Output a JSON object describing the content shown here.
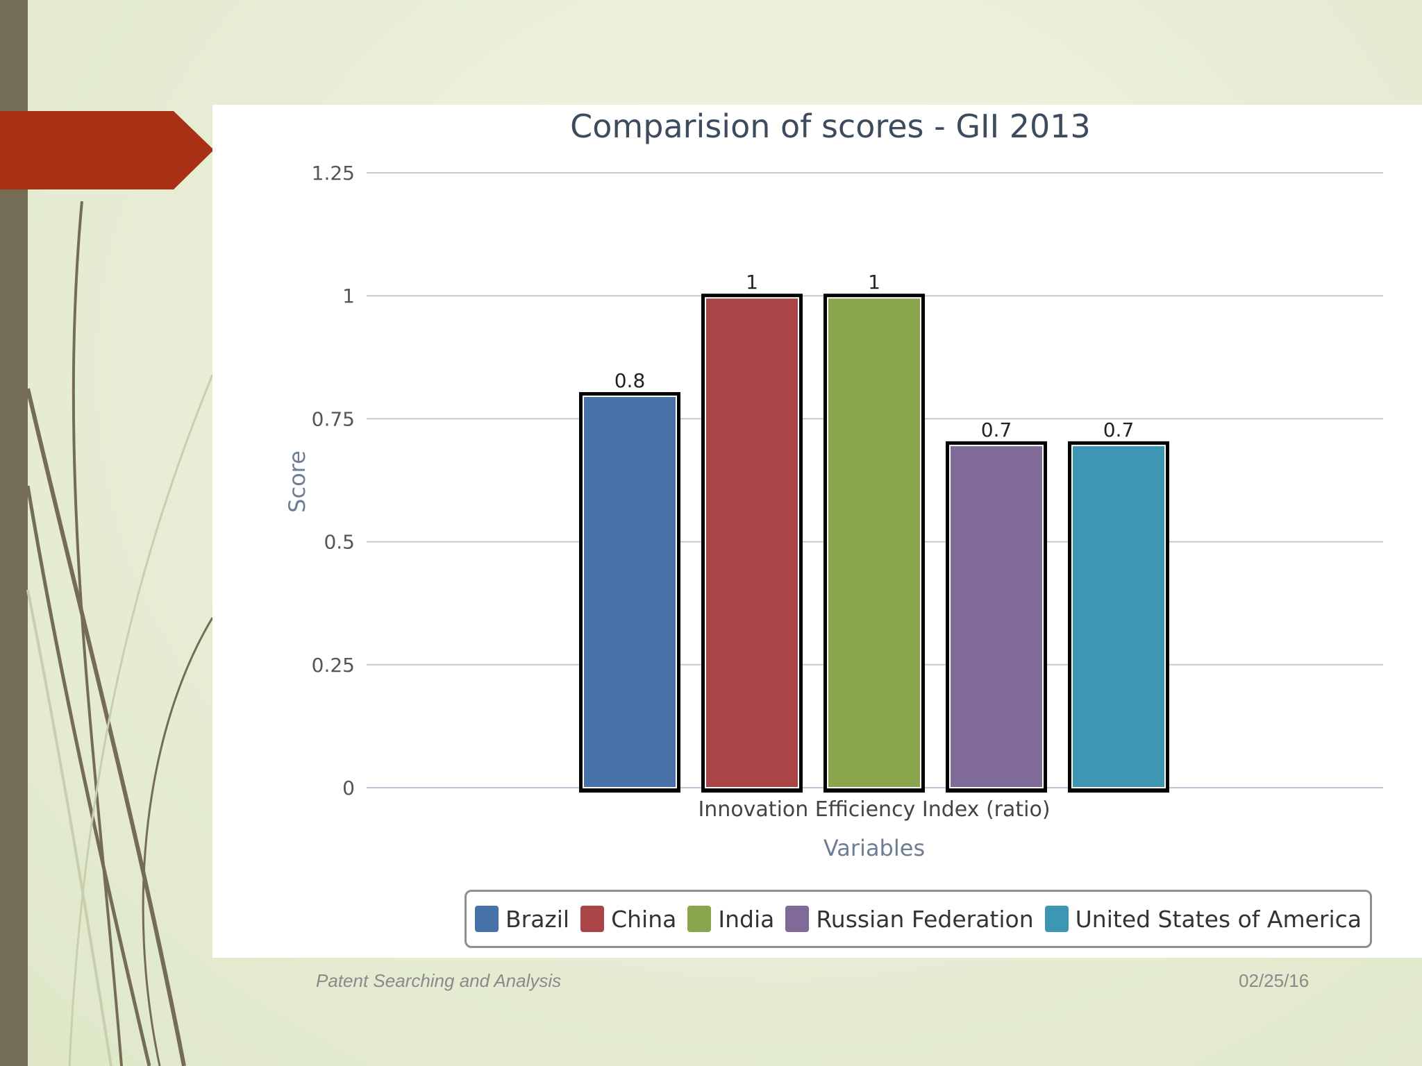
{
  "chart_data": {
    "type": "bar",
    "title": "Comparision of scores - GII 2013",
    "categories": [
      "Innovation Efficiency Index (ratio)"
    ],
    "series": [
      {
        "name": "Brazil",
        "values": [
          0.8
        ],
        "label": "0.8",
        "color": "#4672a8"
      },
      {
        "name": "China",
        "values": [
          1
        ],
        "label": "1",
        "color": "#aa4446"
      },
      {
        "name": "India",
        "values": [
          1
        ],
        "label": "1",
        "color": "#89a54e"
      },
      {
        "name": "Russian Federation",
        "values": [
          0.7
        ],
        "label": "0.7",
        "color": "#806a98"
      },
      {
        "name": "United States of America",
        "values": [
          0.7
        ],
        "label": "0.7",
        "color": "#3d97b3"
      }
    ],
    "xlabel": "Variables",
    "ylabel": "Score",
    "ylim": [
      0,
      1.25
    ],
    "yticks": [
      "0",
      "0.25",
      "0.5",
      "0.75",
      "1",
      "1.25"
    ],
    "grid": true,
    "legend": "bottom-center"
  },
  "footer": {
    "left": "Patent Searching and Analysis",
    "right": "02/25/16"
  },
  "colors": {
    "left_bar": "#756c55",
    "accent_tab": "#a83014"
  }
}
